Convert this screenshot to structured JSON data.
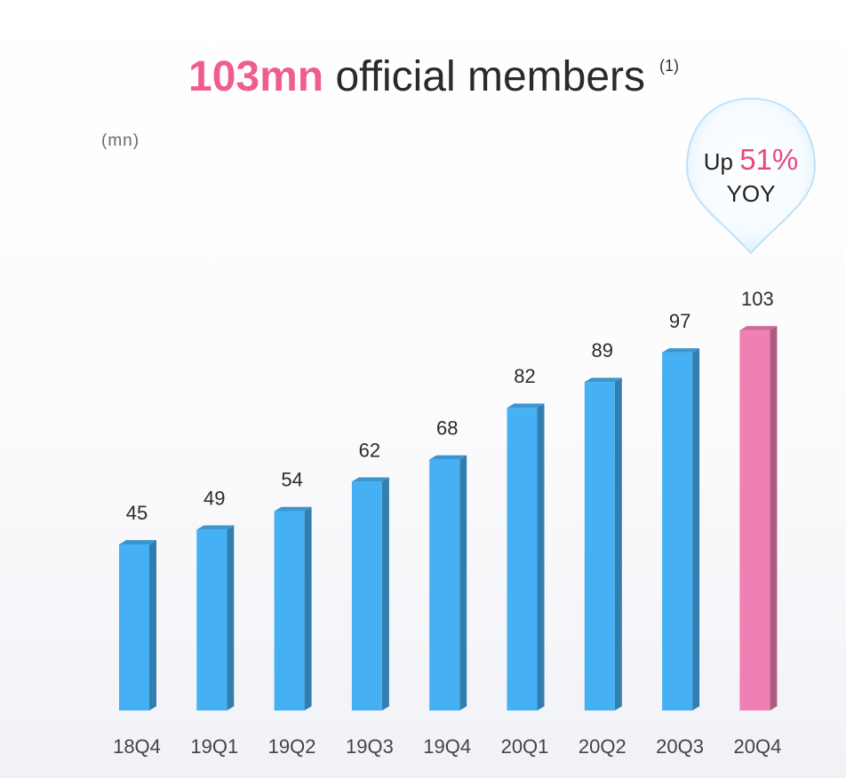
{
  "header": {
    "headline_value": "103mn",
    "headline_text": "official members",
    "footnote": "(1)"
  },
  "unit_label": "(mn)",
  "badge": {
    "prefix": "Up",
    "value": "51%",
    "suffix": "YOY"
  },
  "colors": {
    "bar": "#45b0f3",
    "highlight_bar": "#f07fb4",
    "headline_accent": "#ef5d8f",
    "badge_value": "#e9487f"
  },
  "chart_data": {
    "type": "bar",
    "categories": [
      "18Q4",
      "19Q1",
      "19Q2",
      "19Q3",
      "19Q4",
      "20Q1",
      "20Q2",
      "20Q3",
      "20Q4"
    ],
    "values": [
      45,
      49,
      54,
      62,
      68,
      82,
      89,
      97,
      103
    ],
    "highlight_index": 8,
    "ylabel": "(mn)",
    "ylim": [
      0,
      110
    ],
    "grid": false,
    "legend": "none"
  }
}
